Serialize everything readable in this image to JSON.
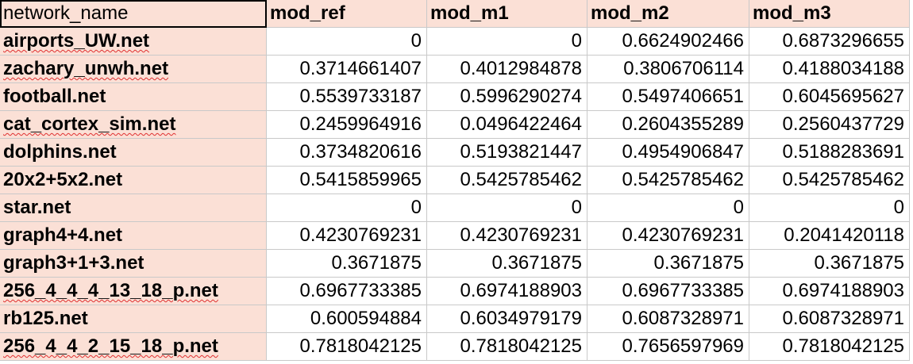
{
  "sheet": {
    "columns": [
      "network_name",
      "mod_ref",
      "mod_m1",
      "mod_m2",
      "mod_m3"
    ],
    "rows": [
      {
        "name": "airports_UW.net",
        "spell": true,
        "values": [
          "0",
          "0",
          "0.6624902466",
          "0.6873296655"
        ]
      },
      {
        "name": "zachary_unwh.net",
        "spell": true,
        "values": [
          "0.3714661407",
          "0.4012984878",
          "0.3806706114",
          "0.4188034188"
        ]
      },
      {
        "name": "football.net",
        "spell": false,
        "values": [
          "0.5539733187",
          "0.5996290274",
          "0.5497406651",
          "0.6045695627"
        ]
      },
      {
        "name": "cat_cortex_sim.net",
        "spell": true,
        "values": [
          "0.2459964916",
          "0.0496422464",
          "0.2604355289",
          "0.2560437729"
        ]
      },
      {
        "name": "dolphins.net",
        "spell": false,
        "values": [
          "0.3734820616",
          "0.5193821447",
          "0.4954906847",
          "0.5188283691"
        ]
      },
      {
        "name": "20x2+5x2.net",
        "spell": false,
        "values": [
          "0.5415859965",
          "0.5425785462",
          "0.5425785462",
          "0.5425785462"
        ]
      },
      {
        "name": "star.net",
        "spell": false,
        "values": [
          "0",
          "0",
          "0",
          "0"
        ]
      },
      {
        "name": "graph4+4.net",
        "spell": false,
        "values": [
          "0.4230769231",
          "0.4230769231",
          "0.4230769231",
          "0.2041420118"
        ]
      },
      {
        "name": "graph3+1+3.net",
        "spell": false,
        "values": [
          "0.3671875",
          "0.3671875",
          "0.3671875",
          "0.3671875"
        ]
      },
      {
        "name": "256_4_4_4_13_18_p.net",
        "spell": true,
        "values": [
          "0.6967733385",
          "0.6974188903",
          "0.6967733385",
          "0.6974188903"
        ]
      },
      {
        "name": "rb125.net",
        "spell": false,
        "values": [
          "0.600594884",
          "0.6034979179",
          "0.6087328971",
          "0.6087328971"
        ]
      },
      {
        "name": "256_4_4_2_15_18_p.net",
        "spell": true,
        "values": [
          "0.7818042125",
          "0.7818042125",
          "0.7656597969",
          "0.7818042125"
        ]
      }
    ]
  },
  "colors": {
    "header_fill": "#fbe0d6",
    "grid_line": "#c9c9c9",
    "spell_underline": "#e03030"
  }
}
